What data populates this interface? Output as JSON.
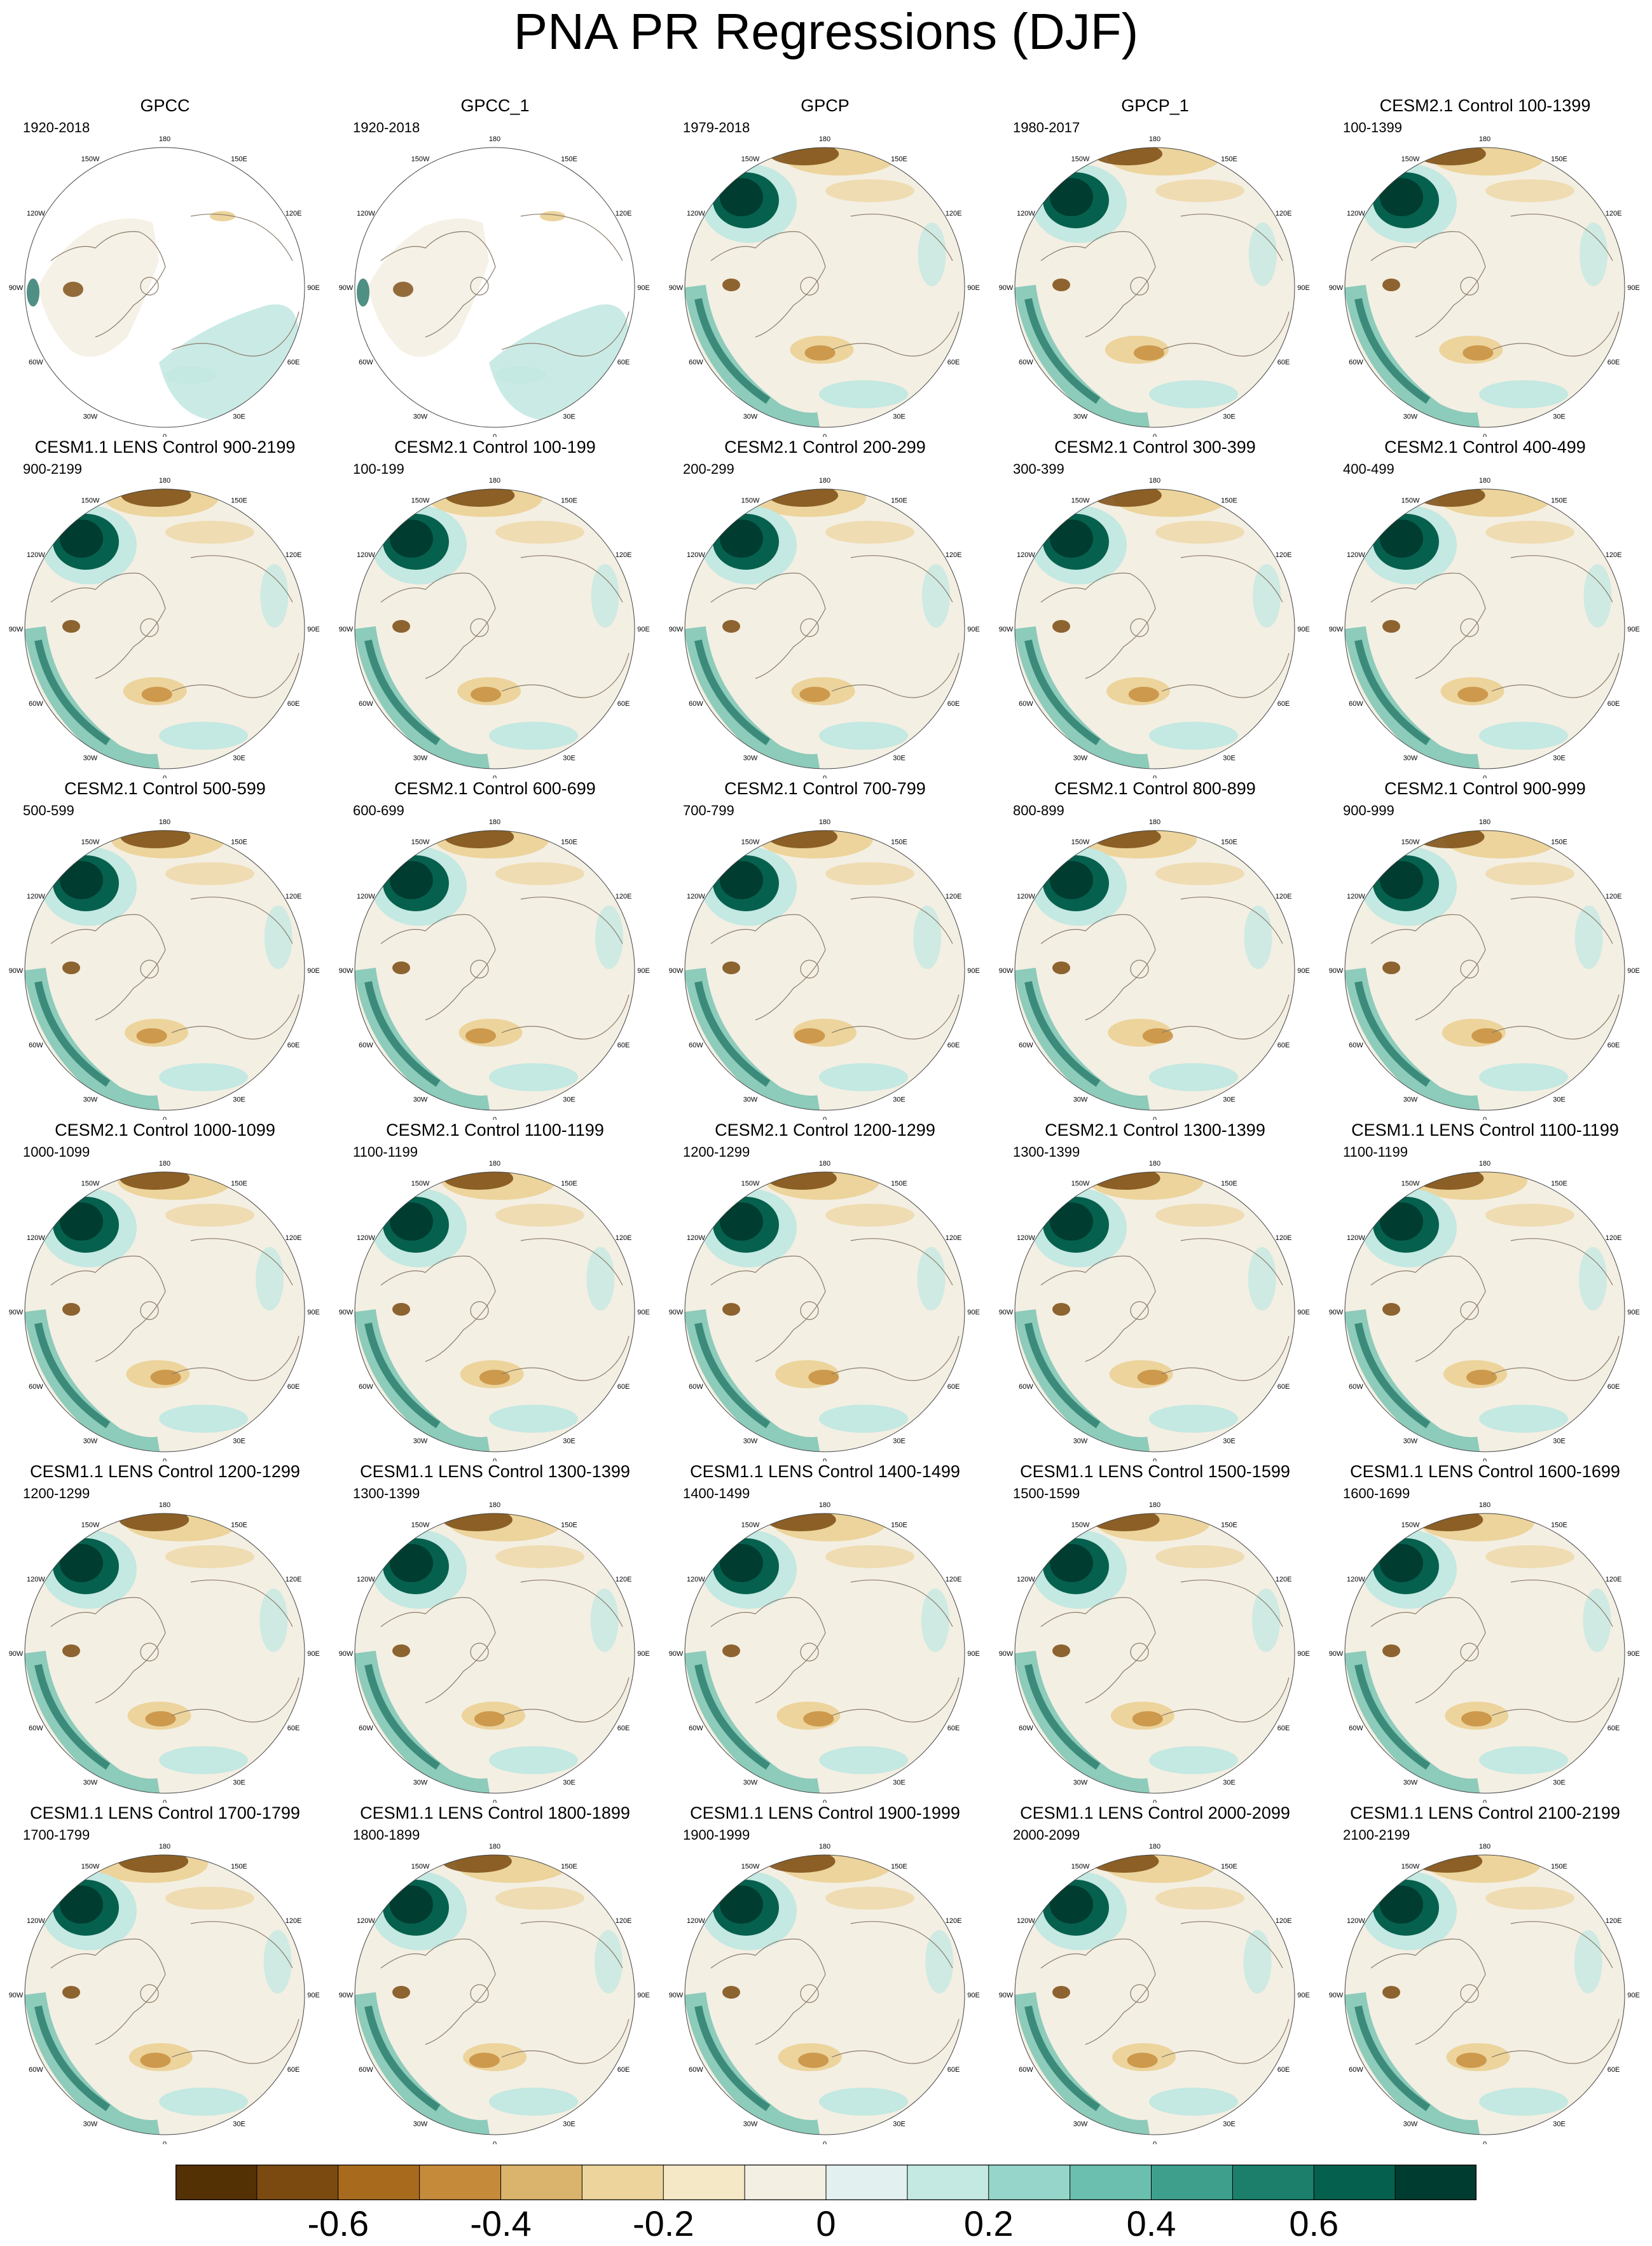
{
  "title": "PNA PR Regressions (DJF)",
  "grid_columns": 5,
  "map_labels": {
    "lon": [
      "180",
      "150E",
      "120E",
      "90E",
      "60E",
      "30E",
      "0",
      "30W",
      "60W",
      "90W",
      "120W",
      "150W"
    ]
  },
  "panels": [
    {
      "title": "GPCC",
      "years": "1920-2018",
      "masked": true
    },
    {
      "title": "GPCC_1",
      "years": "1920-2018",
      "masked": true
    },
    {
      "title": "GPCP",
      "years": "1979-2018",
      "masked": false
    },
    {
      "title": "GPCP_1",
      "years": "1980-2017",
      "masked": false
    },
    {
      "title": "CESM2.1 Control 100-1399",
      "years": "100-1399",
      "masked": false
    },
    {
      "title": "CESM1.1 LENS Control 900-2199",
      "years": "900-2199",
      "masked": false
    },
    {
      "title": "CESM2.1 Control 100-199",
      "years": "100-199",
      "masked": false
    },
    {
      "title": "CESM2.1 Control 200-299",
      "years": "200-299",
      "masked": false
    },
    {
      "title": "CESM2.1 Control 300-399",
      "years": "300-399",
      "masked": false
    },
    {
      "title": "CESM2.1 Control 400-499",
      "years": "400-499",
      "masked": false
    },
    {
      "title": "CESM2.1 Control 500-599",
      "years": "500-599",
      "masked": false
    },
    {
      "title": "CESM2.1 Control 600-699",
      "years": "600-699",
      "masked": false
    },
    {
      "title": "CESM2.1 Control 700-799",
      "years": "700-799",
      "masked": false
    },
    {
      "title": "CESM2.1 Control 800-899",
      "years": "800-899",
      "masked": false
    },
    {
      "title": "CESM2.1 Control 900-999",
      "years": "900-999",
      "masked": false
    },
    {
      "title": "CESM2.1 Control 1000-1099",
      "years": "1000-1099",
      "masked": false
    },
    {
      "title": "CESM2.1 Control 1100-1199",
      "years": "1100-1199",
      "masked": false
    },
    {
      "title": "CESM2.1 Control 1200-1299",
      "years": "1200-1299",
      "masked": false
    },
    {
      "title": "CESM2.1 Control 1300-1399",
      "years": "1300-1399",
      "masked": false
    },
    {
      "title": "CESM1.1 LENS Control 1100-1199",
      "years": "1100-1199",
      "masked": false
    },
    {
      "title": "CESM1.1 LENS Control 1200-1299",
      "years": "1200-1299",
      "masked": false
    },
    {
      "title": "CESM1.1 LENS Control 1300-1399",
      "years": "1300-1399",
      "masked": false
    },
    {
      "title": "CESM1.1 LENS Control 1400-1499",
      "years": "1400-1499",
      "masked": false
    },
    {
      "title": "CESM1.1 LENS Control 1500-1599",
      "years": "1500-1599",
      "masked": false
    },
    {
      "title": "CESM1.1 LENS Control 1600-1699",
      "years": "1600-1699",
      "masked": false
    },
    {
      "title": "CESM1.1 LENS Control 1700-1799",
      "years": "1700-1799",
      "masked": false
    },
    {
      "title": "CESM1.1 LENS Control 1800-1899",
      "years": "1800-1899",
      "masked": false
    },
    {
      "title": "CESM1.1 LENS Control 1900-1999",
      "years": "1900-1999",
      "masked": false
    },
    {
      "title": "CESM1.1 LENS Control 2000-2099",
      "years": "2000-2099",
      "masked": false
    },
    {
      "title": "CESM1.1 LENS Control 2100-2199",
      "years": "2100-2199",
      "masked": false
    }
  ],
  "colorbar": {
    "colors": [
      "#543005",
      "#7a4a10",
      "#a86b1e",
      "#c58a3a",
      "#dab46c",
      "#ecd49c",
      "#f5e8c6",
      "#f4efe3",
      "#e2f1ef",
      "#c4e8e2",
      "#96d5c9",
      "#6bbfae",
      "#3f9f8d",
      "#1b7f6c",
      "#06604e",
      "#003c30"
    ],
    "tick_labels": [
      "-0.6",
      "-0.4",
      "-0.2",
      "0",
      "0.2",
      "0.4",
      "0.6"
    ],
    "tick_positions": [
      2,
      4,
      6,
      8,
      10,
      12,
      14
    ]
  },
  "colors": {
    "negative_strong": "#7a4a10",
    "negative_weak": "#ecd49c",
    "neutral": "#f4efe3",
    "positive_weak": "#c4e8e2",
    "positive_strong": "#06604e",
    "positive_max": "#003c30",
    "coastline": "#8a7c6a"
  }
}
